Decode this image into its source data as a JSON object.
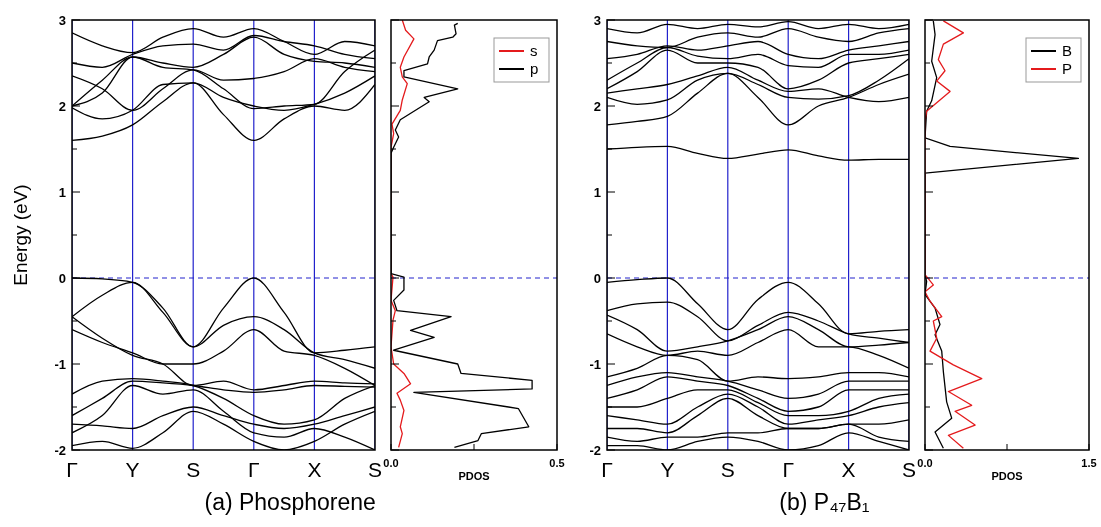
{
  "chart_data": [
    {
      "type": "line",
      "title": "(a)  Phosphorene",
      "ylabel": "Energy (eV)",
      "ylim": [
        -2,
        3
      ],
      "grid": "x",
      "categories": [
        "Γ",
        null,
        "Y",
        null,
        "S",
        null,
        "Γ",
        null,
        "X",
        null,
        "S"
      ],
      "yticks": [
        -2,
        {
          "value": -1.5,
          "label": null
        },
        -1,
        {
          "value": -0.5,
          "label": null
        },
        0,
        {
          "value": 0.5,
          "label": null
        },
        1,
        {
          "value": 1.5,
          "label": null
        },
        2,
        {
          "value": 2.5,
          "label": null
        },
        3
      ],
      "ref_lines": [
        {
          "axis": "y",
          "value": 0,
          "color": "#2222cc",
          "line_style": "dashed"
        }
      ],
      "series": [
        {
          "color": "#000000",
          "values": [
            0,
            -0.01,
            -0.05,
            -0.35,
            -0.8,
            -0.35,
            0,
            -0.4,
            -0.87,
            -0.84,
            -0.8
          ]
        },
        {
          "color": "#000000",
          "values": [
            -0.45,
            -0.2,
            -0.05,
            -0.4,
            -0.8,
            -0.55,
            -0.45,
            -0.6,
            -0.87,
            -0.95,
            -1.05
          ]
        },
        {
          "color": "#000000",
          "values": [
            -0.6,
            -0.75,
            -0.87,
            -1.0,
            -1.0,
            -0.85,
            -0.6,
            -0.85,
            -0.9,
            -1.05,
            -1.25
          ]
        },
        {
          "color": "#000000",
          "values": [
            -0.45,
            -0.7,
            -0.9,
            -1.0,
            -1.25,
            -1.2,
            -1.3,
            -1.25,
            -1.2,
            -1.22,
            -1.23
          ]
        },
        {
          "color": "#000000",
          "values": [
            -1.35,
            -1.2,
            -1.17,
            -1.2,
            -1.25,
            -1.4,
            -1.6,
            -1.7,
            -1.65,
            -1.4,
            -1.25
          ]
        },
        {
          "color": "#000000",
          "values": [
            -1.6,
            -1.4,
            -1.2,
            -1.22,
            -1.25,
            -1.3,
            -1.33,
            -1.3,
            -1.25,
            -1.26,
            -1.27
          ]
        },
        {
          "color": "#000000",
          "values": [
            -1.7,
            -1.72,
            -1.75,
            -1.6,
            -1.5,
            -1.6,
            -1.7,
            -1.75,
            -1.7,
            -1.6,
            -1.5
          ]
        },
        {
          "color": "#000000",
          "values": [
            -1.8,
            -1.6,
            -1.25,
            -1.35,
            -1.3,
            -1.55,
            -1.8,
            -1.85,
            -1.75,
            -1.85,
            -2.0
          ]
        },
        {
          "color": "#000000",
          "values": [
            -1.95,
            -1.9,
            -1.98,
            -1.8,
            -1.55,
            -1.7,
            -1.9,
            -2.0,
            -1.9,
            -1.7,
            -1.55
          ]
        },
        {
          "color": "#000000",
          "values": [
            1.6,
            1.65,
            1.78,
            2.05,
            2.27,
            1.9,
            1.6,
            1.85,
            2.0,
            1.95,
            2.25
          ]
        },
        {
          "color": "#000000",
          "values": [
            1.98,
            1.85,
            1.95,
            2.25,
            2.27,
            2.1,
            2.0,
            1.95,
            2.02,
            2.15,
            2.35
          ]
        },
        {
          "color": "#000000",
          "values": [
            2.0,
            2.15,
            2.57,
            2.45,
            2.42,
            2.2,
            1.97,
            2.0,
            2.02,
            2.4,
            2.65
          ]
        },
        {
          "color": "#000000",
          "values": [
            2.35,
            2.2,
            1.95,
            2.2,
            2.42,
            2.3,
            2.32,
            2.4,
            2.55,
            2.45,
            2.4
          ]
        },
        {
          "color": "#000000",
          "values": [
            2.0,
            2.3,
            2.57,
            2.5,
            2.45,
            2.6,
            2.8,
            2.6,
            2.52,
            2.5,
            2.45
          ]
        },
        {
          "color": "#000000",
          "values": [
            2.5,
            2.45,
            2.6,
            2.7,
            2.72,
            2.65,
            2.82,
            2.75,
            2.7,
            2.6,
            2.55
          ]
        },
        {
          "color": "#000000",
          "values": [
            2.85,
            2.7,
            2.62,
            2.8,
            2.9,
            2.8,
            2.9,
            2.75,
            2.6,
            2.75,
            2.7
          ]
        }
      ]
    },
    {
      "type": "line",
      "xlabel": "PDOS",
      "xlim": [
        0,
        0.5
      ],
      "ylim": [
        -2,
        3
      ],
      "tick_labels": "x",
      "legend": "top right",
      "xticks": [
        {
          "value": 0,
          "label": "0.0"
        },
        {
          "value": 0.25,
          "label": null
        },
        {
          "value": 0.5,
          "label": "0.5"
        }
      ],
      "yticks": [
        -2,
        {
          "value": -1.5,
          "label": null
        },
        -1,
        {
          "value": -0.5,
          "label": null
        },
        0,
        {
          "value": 0.5,
          "label": null
        },
        1,
        {
          "value": 1.5,
          "label": null
        },
        2,
        {
          "value": 2.5,
          "label": null
        },
        3
      ],
      "ref_lines": [
        {
          "axis": "y",
          "value": 0,
          "color": "#2222cc",
          "line_style": "dashed"
        }
      ],
      "series": [
        {
          "name": "s",
          "color": "#e41a1c",
          "x": [
            0.034,
            0.044,
            0.069,
            0.039,
            0.028,
            0.034,
            0.049,
            0.034,
            0.028,
            0.003,
            0.008,
            0,
            0,
            0.006,
            0,
            0.013,
            0.006,
            0,
            0.008,
            0.039,
            0.059,
            0.018,
            0.028,
            0.039,
            0.028,
            0.034,
            0.023
          ],
          "values": [
            3.0,
            2.88,
            2.78,
            2.57,
            2.45,
            2.34,
            2.26,
            2.07,
            1.95,
            1.79,
            1.68,
            1.52,
            0.05,
            0.01,
            -0.26,
            -0.38,
            -0.49,
            -0.8,
            -1.0,
            -1.11,
            -1.23,
            -1.34,
            -1.42,
            -1.54,
            -1.73,
            -1.81,
            -1.97
          ]
        },
        {
          "name": "p",
          "color": "#000000",
          "x": [
            0.201,
            0.191,
            0.196,
            0.186,
            0.14,
            0.13,
            0.115,
            0.11,
            0.039,
            0.039,
            0.201,
            0.1,
            0.115,
            0.028,
            0.013,
            0.023,
            0.008,
            0,
            0,
            0.039,
            0.039,
            0.008,
            0.018,
            0.181,
            0.059,
            0.13,
            0.008,
            0.201,
            0.211,
            0.425,
            0.425,
            0.069,
            0.354,
            0.384,
            0.415,
            0.272,
            0.262,
            0.191
          ],
          "values": [
            2.96,
            2.94,
            2.84,
            2.8,
            2.76,
            2.65,
            2.57,
            2.49,
            2.41,
            2.34,
            2.2,
            2.1,
            2.05,
            1.84,
            1.72,
            1.64,
            1.52,
            1.45,
            0.05,
            0.01,
            -0.14,
            -0.26,
            -0.38,
            -0.45,
            -0.61,
            -0.69,
            -0.84,
            -1.0,
            -1.11,
            -1.19,
            -1.29,
            -1.33,
            -1.5,
            -1.52,
            -1.73,
            -1.81,
            -1.89,
            -1.97
          ]
        }
      ]
    },
    {
      "type": "line",
      "title": "(b) P₄₇B₁",
      "ylim": [
        -2,
        3
      ],
      "grid": "x",
      "categories": [
        "Γ",
        null,
        "Y",
        null,
        "S",
        null,
        "Γ",
        null,
        "X",
        null,
        "S"
      ],
      "yticks": [
        -2,
        {
          "value": -1.5,
          "label": null
        },
        -1,
        {
          "value": -0.5,
          "label": null
        },
        0,
        {
          "value": 0.5,
          "label": null
        },
        1,
        {
          "value": 1.5,
          "label": null
        },
        2,
        {
          "value": 2.5,
          "label": null
        },
        3
      ],
      "ref_lines": [
        {
          "axis": "y",
          "value": 0,
          "color": "#2222cc",
          "line_style": "dashed"
        }
      ],
      "series": [
        {
          "color": "#000000",
          "values": [
            -0.05,
            -0.02,
            0,
            -0.3,
            -0.6,
            -0.25,
            -0.05,
            -0.3,
            -0.65,
            -0.62,
            -0.6
          ]
        },
        {
          "color": "#000000",
          "values": [
            -0.38,
            -0.3,
            -0.28,
            -0.45,
            -0.73,
            -0.55,
            -0.4,
            -0.5,
            -0.65,
            -0.7,
            -0.75
          ]
        },
        {
          "color": "#000000",
          "values": [
            -0.43,
            -0.6,
            -0.85,
            -0.8,
            -0.73,
            -0.6,
            -0.45,
            -0.6,
            -0.8,
            -0.78,
            -0.75
          ]
        },
        {
          "color": "#000000",
          "values": [
            -0.65,
            -0.8,
            -0.9,
            -0.85,
            -0.9,
            -0.75,
            -0.6,
            -0.8,
            -0.8,
            -0.9,
            -1.05
          ]
        },
        {
          "color": "#000000",
          "values": [
            -1.15,
            -1.05,
            -0.9,
            -0.95,
            -1.2,
            -1.15,
            -1.17,
            -1.15,
            -1.1,
            -1.1,
            -1.15
          ]
        },
        {
          "color": "#000000",
          "values": [
            -1.25,
            -1.15,
            -1.1,
            -1.15,
            -1.2,
            -1.3,
            -1.4,
            -1.35,
            -1.2,
            -1.2,
            -1.2
          ]
        },
        {
          "color": "#000000",
          "values": [
            -1.4,
            -1.3,
            -1.15,
            -1.2,
            -1.25,
            -1.4,
            -1.55,
            -1.5,
            -1.3,
            -1.3,
            -1.3
          ]
        },
        {
          "color": "#000000",
          "values": [
            -1.5,
            -1.5,
            -1.4,
            -1.3,
            -1.3,
            -1.45,
            -1.6,
            -1.6,
            -1.55,
            -1.4,
            -1.35
          ]
        },
        {
          "color": "#000000",
          "values": [
            -1.6,
            -1.65,
            -1.7,
            -1.5,
            -1.35,
            -1.5,
            -1.7,
            -1.65,
            -1.6,
            -1.5,
            -1.45
          ]
        },
        {
          "color": "#000000",
          "values": [
            -1.75,
            -1.75,
            -1.8,
            -1.6,
            -1.4,
            -1.6,
            -1.75,
            -1.75,
            -1.7,
            -1.7,
            -1.65
          ]
        },
        {
          "color": "#000000",
          "values": [
            -1.85,
            -1.9,
            -1.85,
            -1.85,
            -1.8,
            -1.8,
            -1.75,
            -1.75,
            -1.7,
            -1.85,
            -1.9
          ]
        },
        {
          "color": "#000000",
          "values": [
            -1.95,
            -1.95,
            -2.0,
            -1.9,
            -1.85,
            -1.9,
            -2.0,
            -1.95,
            -1.8,
            -1.9,
            -2.0
          ]
        },
        {
          "color": "#000000",
          "values": [
            1.5,
            1.52,
            1.53,
            1.45,
            1.39,
            1.44,
            1.49,
            1.42,
            1.37,
            1.38,
            1.38
          ]
        },
        {
          "color": "#000000",
          "values": [
            1.78,
            1.82,
            1.88,
            2.15,
            2.38,
            2.1,
            1.78,
            2.0,
            2.1,
            2.25,
            2.37
          ]
        },
        {
          "color": "#000000",
          "values": [
            2.1,
            2.02,
            2.07,
            2.3,
            2.38,
            2.25,
            2.1,
            2.08,
            2.12,
            2.3,
            2.55
          ]
        },
        {
          "color": "#000000",
          "values": [
            2.15,
            2.2,
            2.25,
            2.35,
            2.45,
            2.3,
            2.17,
            2.2,
            2.1,
            2.05,
            2.1
          ]
        },
        {
          "color": "#000000",
          "values": [
            2.2,
            2.4,
            2.65,
            2.5,
            2.5,
            2.45,
            2.2,
            2.3,
            2.5,
            2.55,
            2.6
          ]
        },
        {
          "color": "#000000",
          "values": [
            2.3,
            2.5,
            2.68,
            2.58,
            2.55,
            2.6,
            2.47,
            2.45,
            2.6,
            2.6,
            2.65
          ]
        },
        {
          "color": "#000000",
          "values": [
            2.55,
            2.6,
            2.7,
            2.65,
            2.7,
            2.75,
            2.6,
            2.55,
            2.65,
            2.7,
            2.75
          ]
        },
        {
          "color": "#000000",
          "values": [
            2.75,
            2.7,
            2.68,
            2.8,
            2.85,
            2.8,
            2.9,
            2.8,
            2.75,
            2.85,
            2.9
          ]
        },
        {
          "color": "#000000",
          "values": [
            2.9,
            2.85,
            2.95,
            2.9,
            2.95,
            2.92,
            2.98,
            2.9,
            2.95,
            2.9,
            2.95
          ]
        }
      ]
    },
    {
      "type": "line",
      "xlabel": "PDOS",
      "xlim": [
        0,
        1.5
      ],
      "ylim": [
        -2,
        3
      ],
      "tick_labels": "x",
      "legend": "top right",
      "xticks": [
        {
          "value": 0,
          "label": "0.0"
        },
        {
          "value": 0.75,
          "label": null
        },
        1.5
      ],
      "yticks": [
        -2,
        {
          "value": -1.5,
          "label": null
        },
        -1,
        {
          "value": -0.5,
          "label": null
        },
        0,
        {
          "value": 0.5,
          "label": null
        },
        1,
        {
          "value": 1.5,
          "label": null
        },
        2,
        {
          "value": 2.5,
          "label": null
        },
        3
      ],
      "ref_lines": [
        {
          "axis": "y",
          "value": 0,
          "color": "#2222cc",
          "line_style": "dashed"
        }
      ],
      "series": [
        {
          "name": "B",
          "color": "#000000",
          "x": [
            0.076,
            0.092,
            0.061,
            0.107,
            0.061,
            0.015,
            0,
            0.229,
            1.403,
            0,
            0,
            0.015,
            0,
            0.092,
            0.137,
            0.092,
            0.153,
            0.168,
            0.198,
            0.244,
            0.092,
            0.168
          ],
          "values": [
            2.99,
            2.83,
            2.52,
            2.33,
            2.06,
            1.94,
            1.63,
            1.53,
            1.39,
            1.22,
            0.04,
            -0.04,
            -0.19,
            -0.35,
            -0.54,
            -0.66,
            -0.85,
            -1.09,
            -1.44,
            -1.63,
            -1.79,
            -1.98
          ]
        },
        {
          "name": "P",
          "color": "#e41a1c",
          "x": [
            0.168,
            0.351,
            0.168,
            0.122,
            0.183,
            0.107,
            0.229,
            0.015,
            0,
            0,
            0.076,
            0,
            0.046,
            0.153,
            0.076,
            0.107,
            0.046,
            0.259,
            0.519,
            0.214,
            0.427,
            0.275,
            0.458,
            0.214,
            0.351
          ],
          "values": [
            2.99,
            2.85,
            2.72,
            2.54,
            2.41,
            2.29,
            2.17,
            1.94,
            1.83,
            0.04,
            -0.08,
            -0.16,
            -0.27,
            -0.45,
            -0.5,
            -0.7,
            -0.85,
            -1.01,
            -1.17,
            -1.32,
            -1.48,
            -1.55,
            -1.71,
            -1.83,
            -1.98
          ]
        }
      ]
    }
  ]
}
